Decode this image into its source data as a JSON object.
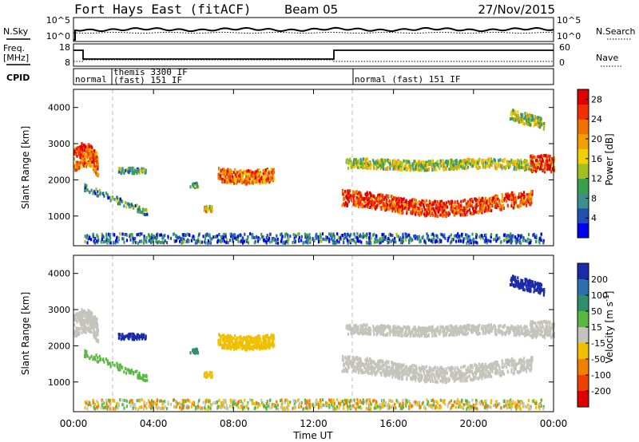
{
  "header": {
    "station": "Fort Hays East (fitACF)",
    "beam": "Beam 05",
    "date": "27/Nov/2015"
  },
  "labels": {
    "nsky": "N.Sky",
    "nsearch": "N.Search",
    "freq_top": "Freq.",
    "freq_unit": "[MHz]",
    "nave": "Nave",
    "cpid": "CPID",
    "xlabel": "Time UT"
  },
  "noise_panel": {
    "left_ticks": [
      "10^5",
      "10^0"
    ],
    "right_ticks": [
      "10^5",
      "10^0"
    ]
  },
  "freq_panel": {
    "left_ticks": [
      "18",
      "8"
    ],
    "right_ticks": [
      "60",
      "0"
    ]
  },
  "cpid_panel": {
    "segments": [
      {
        "label_line1": "normal",
        "label_line2": "",
        "start_hour": 0.0
      },
      {
        "label_line1": "themis 3300 IF",
        "label_line2": "(fast) 151 IF",
        "start_hour": 1.9
      },
      {
        "label_line1": "normal (fast) 151 IF",
        "label_line2": "",
        "start_hour": 14.0
      }
    ]
  },
  "time_axis": {
    "ticks": [
      "00:00",
      "04:00",
      "08:00",
      "12:00",
      "16:00",
      "20:00",
      "00:00"
    ]
  },
  "chart_data": [
    {
      "type": "heatmap",
      "title": "Power",
      "ylabel": "Slant Range [km]",
      "xlabel": "",
      "ylim": [
        180,
        4500
      ],
      "xlim": [
        0,
        24
      ],
      "yticks": [
        "1000",
        "2000",
        "3000",
        "4000"
      ],
      "colorbar": {
        "label": "Power [dB]",
        "tick_labels": [
          "4",
          "8",
          "12",
          "16",
          "20",
          "24",
          "28"
        ],
        "range": [
          0,
          30
        ],
        "colors": [
          "#0000f0",
          "#2050b0",
          "#3a8f8f",
          "#3aa050",
          "#a0c020",
          "#f0d000",
          "#f0a000",
          "#f07000",
          "#f03000",
          "#e00000"
        ]
      }
    },
    {
      "type": "heatmap",
      "title": "Velocity",
      "ylabel": "Slant Range [km]",
      "xlabel": "Time UT",
      "ylim": [
        180,
        4500
      ],
      "xlim": [
        0,
        24
      ],
      "yticks": [
        "1000",
        "2000",
        "3000",
        "4000"
      ],
      "colorbar": {
        "label": "Velocity [m s^-1]",
        "tick_labels": [
          "200",
          "100",
          "50",
          "15",
          "-15",
          "-50",
          "-100",
          "-200"
        ],
        "range": [
          -250,
          250
        ],
        "colors": [
          "#1a2aa8",
          "#2e6fb0",
          "#2e8e6e",
          "#58b840",
          "#c4c4bc",
          "#f0c000",
          "#f08000",
          "#f04000",
          "#e00000"
        ]
      }
    }
  ]
}
